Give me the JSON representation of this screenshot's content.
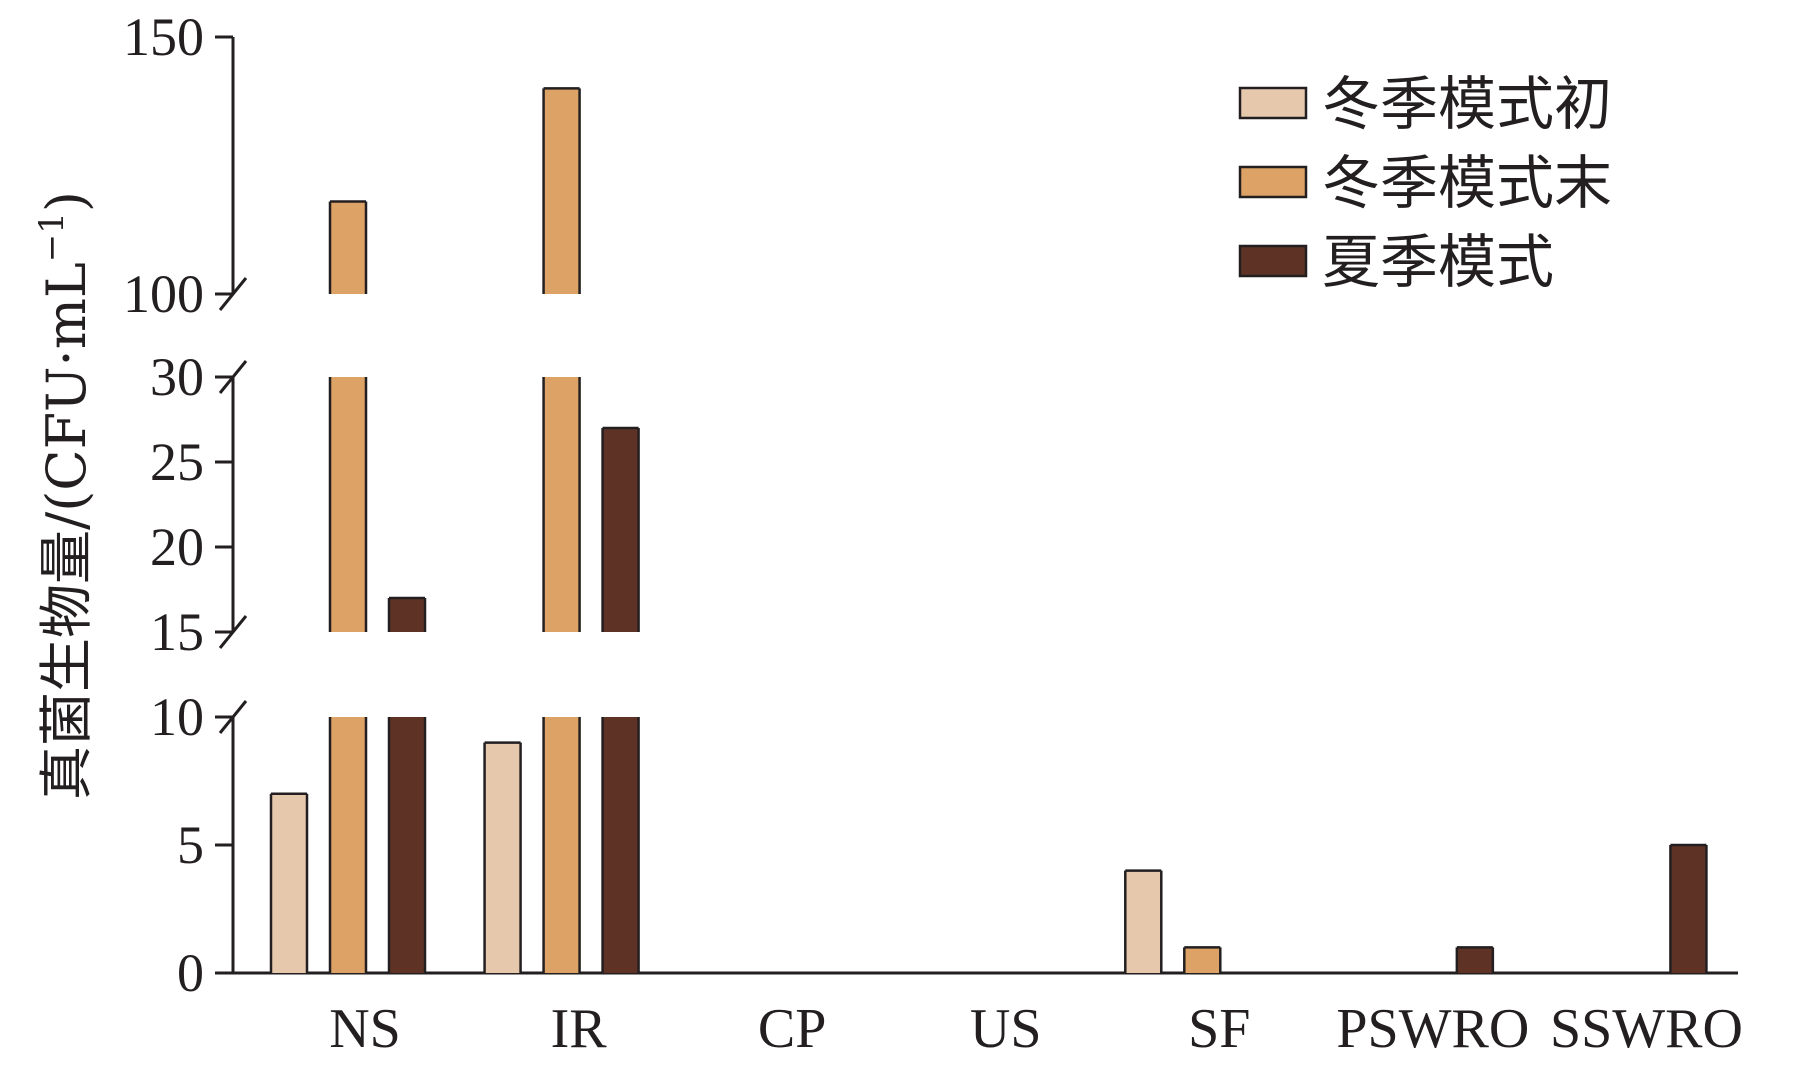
{
  "chart_data": {
    "type": "bar",
    "ylabel": "真菌生物量/(CFU·mL",
    "ylabel_sup": "−1",
    "ylabel_close": ")",
    "categories": [
      "NS",
      "IR",
      "CP",
      "US",
      "SF",
      "PSWRO",
      "SSWRO"
    ],
    "series": [
      {
        "name": "冬季模式初",
        "color": "#e6c8ad",
        "values": [
          7,
          9,
          0,
          0,
          4,
          0,
          0
        ]
      },
      {
        "name": "冬季模式末",
        "color": "#dca266",
        "values": [
          118,
          140,
          0,
          0,
          1,
          0,
          0
        ]
      },
      {
        "name": "夏季模式",
        "color": "#5e3326",
        "values": [
          17,
          27,
          0,
          0,
          0,
          1,
          5
        ]
      }
    ],
    "y_axis_breaks": true,
    "y_segments": [
      {
        "range": [
          0,
          10
        ],
        "ticks": [
          "0",
          "5",
          "10"
        ]
      },
      {
        "range": [
          15,
          30
        ],
        "ticks": [
          "15",
          "20",
          "25",
          "30"
        ]
      },
      {
        "range": [
          100,
          150
        ],
        "ticks": [
          "100",
          "150"
        ]
      }
    ],
    "legend_position": "top-right",
    "grid": false
  }
}
